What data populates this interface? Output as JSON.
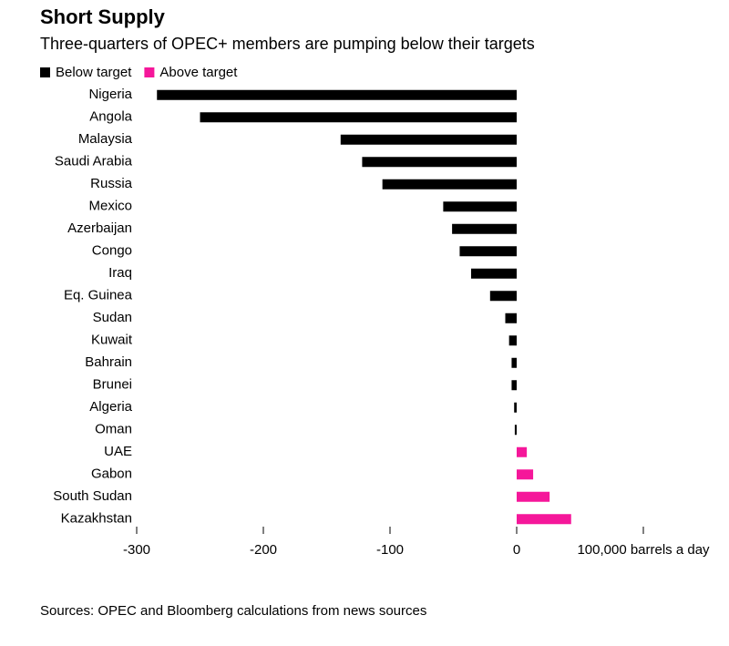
{
  "chart_data": {
    "type": "hbar",
    "title": "Short Supply",
    "subtitle": "Three-quarters of OPEC+ members are pumping below their targets",
    "source": "Sources: OPEC and Bloomberg calculations from news sources",
    "categories": [
      "Nigeria",
      "Angola",
      "Malaysia",
      "Saudi Arabia",
      "Russia",
      "Mexico",
      "Azerbaijan",
      "Congo",
      "Iraq",
      "Eq. Guinea",
      "Sudan",
      "Kuwait",
      "Bahrain",
      "Brunei",
      "Algeria",
      "Oman",
      "UAE",
      "Gabon",
      "South Sudan",
      "Kazakhstan"
    ],
    "series": [
      {
        "name": "Below target",
        "color": "#000000",
        "values": [
          -284,
          -250,
          -139,
          -122,
          -106,
          -58,
          -51,
          -45,
          -36,
          -21,
          -9,
          -6,
          -4,
          -4,
          -2,
          -1.5,
          null,
          null,
          null,
          null
        ]
      },
      {
        "name": "Above target",
        "color": "#f5179a",
        "values": [
          null,
          null,
          null,
          null,
          null,
          null,
          null,
          null,
          null,
          null,
          null,
          null,
          null,
          null,
          null,
          null,
          8,
          13,
          26,
          43
        ]
      }
    ],
    "xlim": [
      -300,
      100
    ],
    "xticks": [
      -300,
      -200,
      -100,
      0,
      {
        "value": 100,
        "label": "100,000 barrels a day"
      }
    ],
    "legend": "top-left"
  }
}
